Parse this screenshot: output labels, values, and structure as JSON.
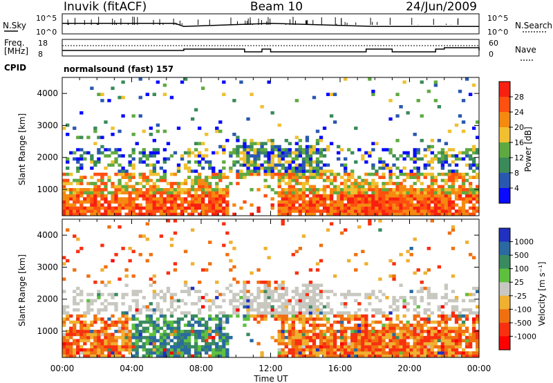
{
  "header": {
    "station": "Inuvik (fitACF)",
    "beam": "Beam 10",
    "date": "24/Jun/2009"
  },
  "panels": {
    "sky": {
      "left_label": "N.Sky",
      "right_label": "N.Search",
      "left_ticks": [
        "10^5",
        "10^0"
      ],
      "right_ticks": [
        "10^5",
        "10^0"
      ]
    },
    "freq": {
      "left_label_1": "Freq.",
      "left_label_2": "[MHz]",
      "right_label": "Nave",
      "left_ticks": [
        "18",
        "8"
      ],
      "right_ticks": [
        "60",
        "0"
      ]
    },
    "cpid": {
      "label": "CPID",
      "text": "normalsound (fast) 157"
    }
  },
  "axes": {
    "ylabel": "Slant Range [km]",
    "xlabel": "Time UT",
    "x_ticks": [
      "00:00",
      "04:00",
      "08:00",
      "12:00",
      "16:00",
      "20:00",
      "00:00"
    ],
    "y_ticks": [
      "1000",
      "2000",
      "3000",
      "4000"
    ]
  },
  "colorbars": {
    "power": {
      "label": "Power [dB]",
      "ticks": [
        "4",
        "8",
        "12",
        "16",
        "20",
        "24",
        "28"
      ],
      "colors": [
        "#0a0aff",
        "#2a58b0",
        "#3a8a5a",
        "#5faa40",
        "#f0c030",
        "#f58a10",
        "#ff5010",
        "#f82010"
      ]
    },
    "velocity": {
      "label": "Velocity [m s⁻¹]",
      "ticks": [
        "1000",
        "500",
        "100",
        "25",
        "-25",
        "-100",
        "-500",
        "-1000"
      ],
      "colors": [
        "#2030c0",
        "#2a6aa0",
        "#3a8a60",
        "#5fc040",
        "#c8c8c0",
        "#f0b030",
        "#f07010",
        "#f83010",
        "#ff0000"
      ]
    }
  },
  "chart_data": [
    {
      "type": "line",
      "title": "Inuvik (fitACF) Beam 10 24/Jun/2009",
      "series": [
        {
          "name": "N.Sky",
          "x": [
            "00:00",
            "06:30",
            "07:00",
            "12:00",
            "18:00",
            "00:00"
          ],
          "values": [
            3,
            3,
            2,
            3,
            2,
            2
          ]
        },
        {
          "name": "Freq. [MHz]",
          "x": [
            "00:00",
            "07:00",
            "10:30",
            "11:30",
            "12:00",
            "17:30",
            "19:00",
            "21:30",
            "22:00",
            "00:00"
          ],
          "values": [
            11,
            12,
            10,
            12,
            10,
            12,
            10,
            12,
            13,
            11
          ]
        }
      ]
    },
    {
      "type": "heatmap",
      "quantity": "Power [dB]",
      "xlabel": "Time UT",
      "ylabel": "Slant Range [km]",
      "xlim": [
        "00:00",
        "00:00"
      ],
      "ylim": [
        180,
        4500
      ],
      "clim": [
        0,
        32
      ]
    },
    {
      "type": "heatmap",
      "quantity": "Velocity [m s⁻¹]",
      "xlabel": "Time UT",
      "ylabel": "Slant Range [km]",
      "xlim": [
        "00:00",
        "00:00"
      ],
      "ylim": [
        180,
        4500
      ],
      "clim": [
        -1000,
        1000
      ]
    }
  ]
}
